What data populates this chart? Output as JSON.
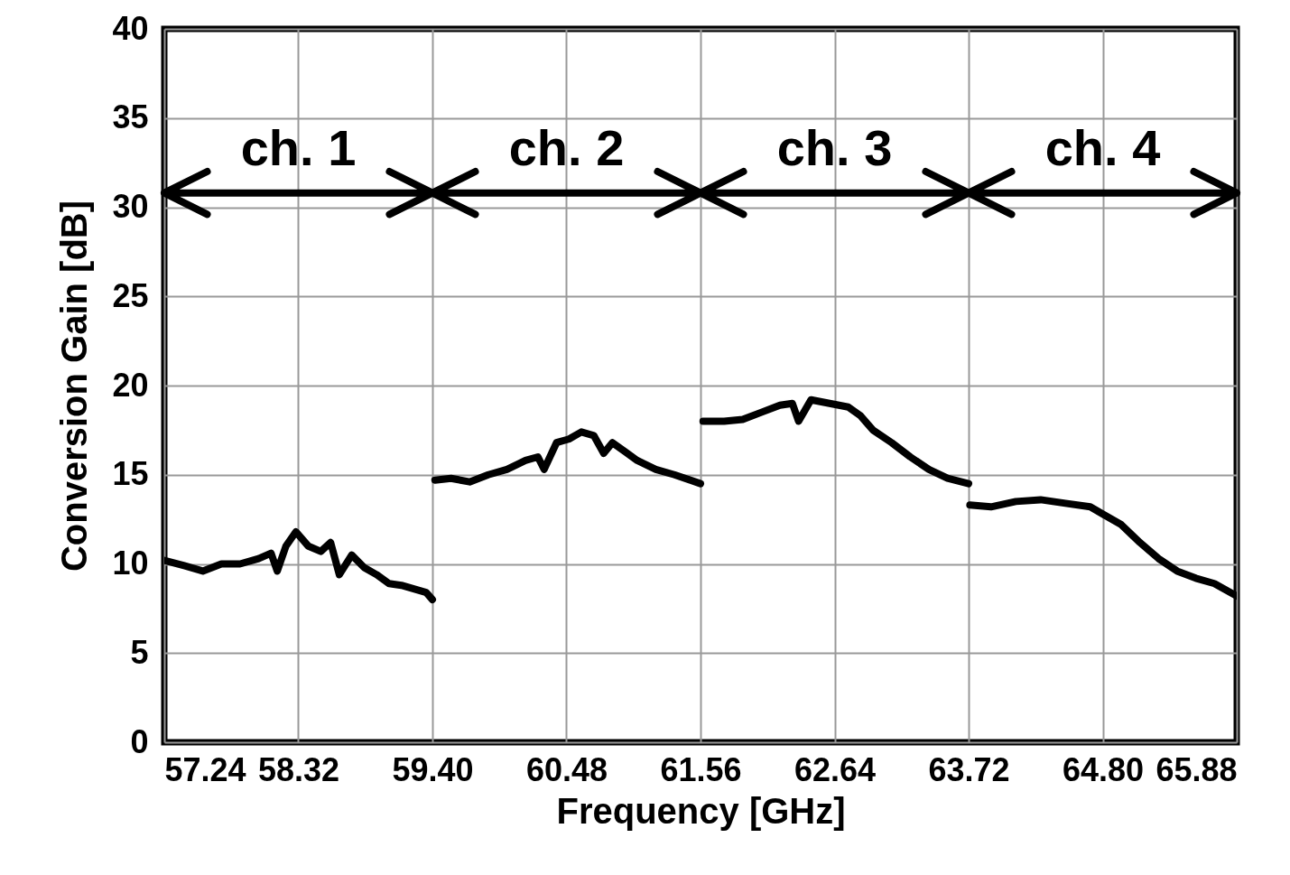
{
  "chart_data": {
    "type": "line",
    "xlabel": "Frequency [GHz]",
    "ylabel": "Conversion Gain [dB]",
    "xlim": [
      57.24,
      65.88
    ],
    "xticks": [
      57.24,
      58.32,
      {
        "value": 59.4,
        "label": "59.40"
      },
      60.48,
      61.56,
      62.64,
      63.72,
      {
        "value": 64.8,
        "label": "64.80"
      },
      65.88
    ],
    "ylim": [
      0,
      40
    ],
    "yticks": [
      0,
      5,
      10,
      15,
      20,
      25,
      30,
      35,
      40
    ],
    "grid": true,
    "series": [
      {
        "color": "#000000",
        "x": [
          57.24,
          57.4,
          57.55,
          57.7,
          57.85,
          58.0,
          58.1,
          58.15,
          58.22,
          58.3,
          58.4,
          58.5,
          58.58,
          58.65,
          58.75,
          58.85,
          58.95,
          59.05,
          59.15,
          59.25,
          59.35,
          59.4
        ],
        "values": [
          10.2,
          9.9,
          9.6,
          10.0,
          10.0,
          10.3,
          10.6,
          9.6,
          11.0,
          11.8,
          11.0,
          10.7,
          11.2,
          9.4,
          10.5,
          9.8,
          9.4,
          8.9,
          8.8,
          8.6,
          8.4,
          8.0
        ]
      },
      {
        "color": "#000000",
        "x": [
          59.42,
          59.55,
          59.7,
          59.85,
          60.0,
          60.15,
          60.25,
          60.3,
          60.4,
          60.5,
          60.6,
          60.7,
          60.78,
          60.85,
          60.95,
          61.05,
          61.2,
          61.35,
          61.56
        ],
        "values": [
          14.7,
          14.8,
          14.6,
          15.0,
          15.3,
          15.8,
          16.0,
          15.3,
          16.8,
          17.0,
          17.4,
          17.2,
          16.2,
          16.8,
          16.3,
          15.8,
          15.3,
          15.0,
          14.5
        ]
      },
      {
        "color": "#000000",
        "x": [
          61.58,
          61.75,
          61.9,
          62.05,
          62.2,
          62.3,
          62.35,
          62.45,
          62.6,
          62.75,
          62.85,
          62.95,
          63.1,
          63.25,
          63.4,
          63.55,
          63.72
        ],
        "values": [
          18.0,
          18.0,
          18.1,
          18.5,
          18.9,
          19.0,
          18.0,
          19.2,
          19.0,
          18.8,
          18.3,
          17.5,
          16.8,
          16.0,
          15.3,
          14.8,
          14.5
        ]
      },
      {
        "color": "#000000",
        "x": [
          63.73,
          63.9,
          64.1,
          64.3,
          64.5,
          64.7,
          64.8,
          64.95,
          65.1,
          65.25,
          65.4,
          65.55,
          65.7,
          65.88
        ],
        "values": [
          13.3,
          13.2,
          13.5,
          13.6,
          13.4,
          13.2,
          12.8,
          12.2,
          11.2,
          10.3,
          9.6,
          9.2,
          8.9,
          8.2
        ]
      }
    ],
    "annotations": [
      "ch. 1",
      "ch. 2",
      "ch. 3",
      "ch. 4"
    ]
  }
}
